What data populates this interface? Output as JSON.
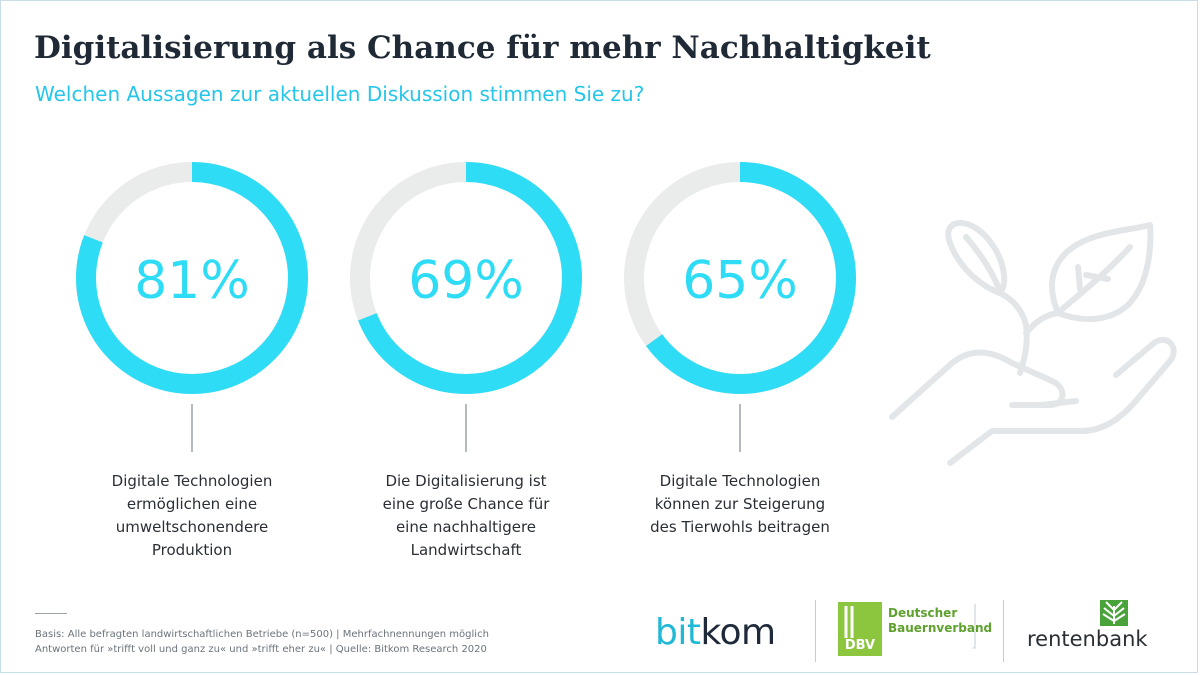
{
  "header": {
    "title": "Digitalisierung als Chance für mehr Nachhaltigkeit",
    "subtitle": "Welchen Aussagen zur aktuellen Diskussion stimmen Sie zu?"
  },
  "chart_data": {
    "type": "pie",
    "variant": "donut",
    "unit": "%",
    "colors": {
      "filled": "#2fdcf5",
      "track": "#eaeceb",
      "connector": "#9aa2aa"
    },
    "items": [
      {
        "value": 81,
        "value_label": "81%",
        "caption_lines": [
          "Digitale Technologien",
          "ermöglichen eine",
          "umweltschonendere",
          "Produktion"
        ]
      },
      {
        "value": 69,
        "value_label": "69%",
        "caption_lines": [
          "Die Digitalisierung ist",
          "eine große Chance für",
          "eine nachhaltigere",
          "Landwirtschaft"
        ]
      },
      {
        "value": 65,
        "value_label": "65%",
        "caption_lines": [
          "Digitale Technologien",
          "können zur Steigerung",
          "des Tierwohls beitragen"
        ]
      }
    ]
  },
  "footer": {
    "note_lines": [
      "Basis: Alle befragten landwirtschaftlichen Betriebe (n=500) | Mehrfachnennungen möglich",
      "Antworten für »trifft voll und ganz zu« und »trifft eher zu« | Quelle: Bitkom Research 2020"
    ]
  },
  "logos": {
    "bitkom": {
      "part1": "bit",
      "part2": "kom"
    },
    "dbv": {
      "mark": "DBV",
      "line1": "Deutscher",
      "line2": "Bauernverband"
    },
    "rentenbank": {
      "name": "rentenbank"
    }
  },
  "decoration": {
    "icon": "hand-with-plant-icon"
  }
}
